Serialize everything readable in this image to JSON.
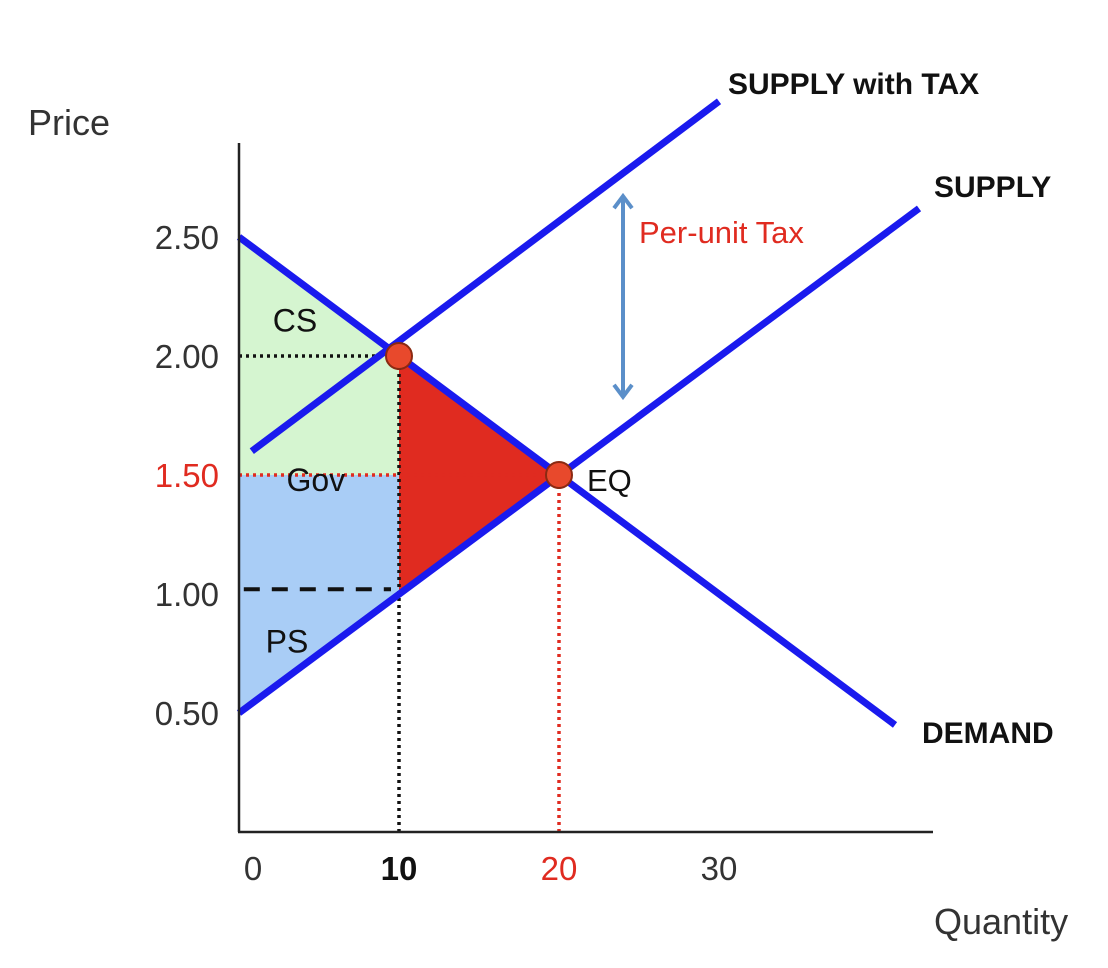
{
  "chart_data": {
    "type": "line",
    "xlabel": "Quantity",
    "ylabel": "Price",
    "xlim": [
      0,
      43
    ],
    "ylim": [
      0,
      2.9
    ],
    "x_ticks": [
      {
        "value": 0,
        "label": "0",
        "color": "#333333",
        "bold": false
      },
      {
        "value": 10,
        "label": "10",
        "color": "#111111",
        "bold": true
      },
      {
        "value": 20,
        "label": "20",
        "color": "#e02b20",
        "bold": false
      },
      {
        "value": 30,
        "label": "30",
        "color": "#333333",
        "bold": false
      }
    ],
    "y_ticks": [
      {
        "value": 0.5,
        "label": "0.50",
        "color": "#333333"
      },
      {
        "value": 1.0,
        "label": "1.00",
        "color": "#333333"
      },
      {
        "value": 1.5,
        "label": "1.50",
        "color": "#e02b20"
      },
      {
        "value": 2.0,
        "label": "2.00",
        "color": "#333333"
      },
      {
        "value": 2.5,
        "label": "2.50",
        "color": "#333333"
      }
    ],
    "series": [
      {
        "name": "SUPPLY with TAX",
        "color": "#1a1aee",
        "x": [
          0.8,
          30.0
        ],
        "y": [
          1.6,
          3.07
        ]
      },
      {
        "name": "SUPPLY",
        "color": "#1a1aee",
        "x": [
          0,
          42.5
        ],
        "y": [
          0.5,
          2.62
        ]
      },
      {
        "name": "DEMAND",
        "color": "#1a1aee",
        "x": [
          0,
          41.0
        ],
        "y": [
          2.5,
          0.45
        ]
      }
    ],
    "points": [
      {
        "name": "tax-equilibrium",
        "x": 10,
        "y": 2.0
      },
      {
        "name": "EQ",
        "x": 20,
        "y": 1.5
      }
    ],
    "areas": [
      {
        "name": "CS",
        "color": "#d5f5d0",
        "points": [
          [
            0,
            2.5
          ],
          [
            10,
            2.0
          ],
          [
            0,
            2.0
          ]
        ]
      },
      {
        "name": "Gov",
        "color": "#d5f5d0",
        "points": [
          [
            0,
            2.0
          ],
          [
            10,
            2.0
          ],
          [
            10,
            1.5
          ],
          [
            0,
            1.5
          ]
        ]
      },
      {
        "name": "PS",
        "color": "#a9cdf6",
        "points": [
          [
            0,
            1.5
          ],
          [
            10,
            1.5
          ],
          [
            10,
            1.0
          ],
          [
            0,
            0.5
          ]
        ]
      },
      {
        "name": "deadweight-loss",
        "color": "#e02b20",
        "points": [
          [
            10,
            2.0
          ],
          [
            20,
            1.5
          ],
          [
            10,
            1.0
          ]
        ]
      }
    ],
    "area_labels": [
      {
        "text": "CS",
        "x": 3.5,
        "y": 2.15
      },
      {
        "text": "Gov",
        "x": 4.8,
        "y": 1.48
      },
      {
        "text": "PS",
        "x": 3.0,
        "y": 0.8
      }
    ],
    "guides": [
      {
        "x1": 0,
        "y1": 2.0,
        "x2": 10,
        "y2": 2.0,
        "style": "dotted",
        "color": "#111111"
      },
      {
        "x1": 10,
        "y1": 0,
        "x2": 10,
        "y2": 2.0,
        "style": "dotted",
        "color": "#111111"
      },
      {
        "x1": 0,
        "y1": 1.5,
        "x2": 20,
        "y2": 1.5,
        "style": "dotted",
        "color": "#e02b20"
      },
      {
        "x1": 20,
        "y1": 0,
        "x2": 20,
        "y2": 1.5,
        "style": "dotted",
        "color": "#e02b20"
      },
      {
        "x1": 0.3,
        "y1": 1.02,
        "x2": 9.5,
        "y2": 1.02,
        "style": "dashed",
        "color": "#111111"
      }
    ],
    "annotations": [
      {
        "text": "Per-unit Tax",
        "x": 25,
        "y": 2.52,
        "color": "#e02b20"
      },
      {
        "text": "EQ",
        "x": 23,
        "y": 1.48,
        "color": "#111111"
      }
    ],
    "tax_arrow": {
      "x": 24,
      "y_from": 1.82,
      "y_to": 2.68,
      "color": "#5b8fc9"
    },
    "grid": false
  }
}
